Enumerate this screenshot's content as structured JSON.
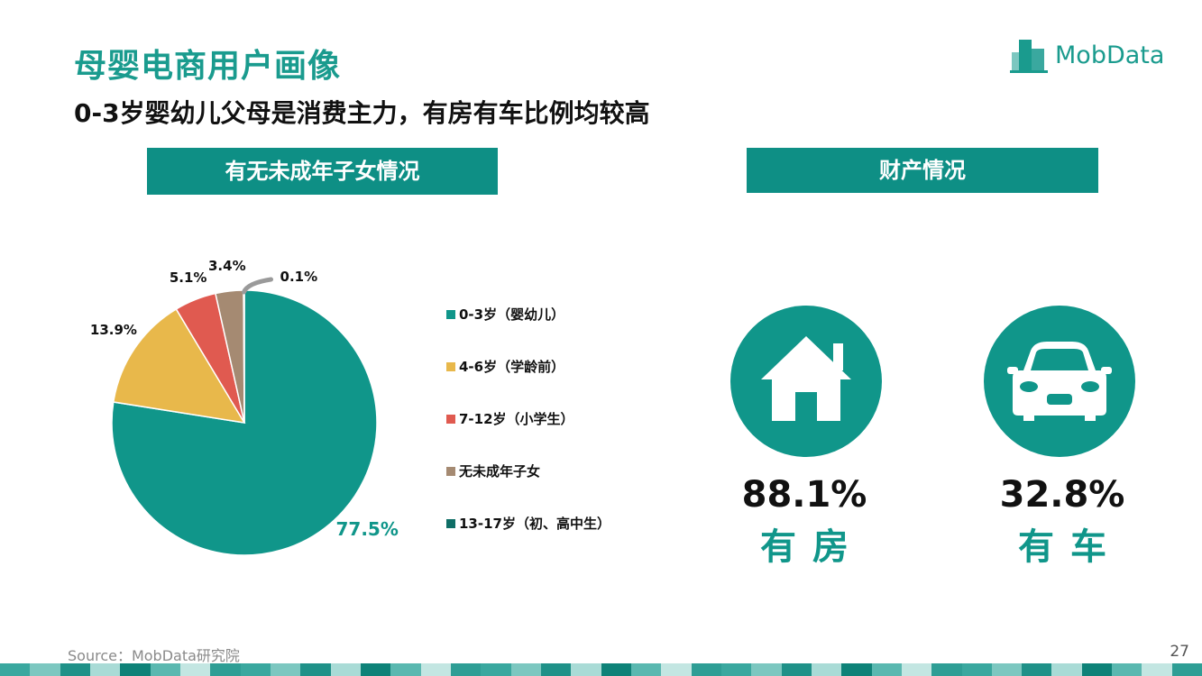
{
  "header": {
    "title": "母婴电商用户画像",
    "subtitle": "0-3岁婴幼儿父母是消费主力，有房有车比例均较高",
    "logo_text": "MobData"
  },
  "sections": {
    "left_title": "有无未成年子女情况",
    "right_title": "财产情况"
  },
  "chart_data": {
    "type": "pie",
    "categories": [
      "0-3岁（婴幼儿）",
      "4-6岁（学龄前）",
      "7-12岁（小学生）",
      "无未成年子女",
      "13-17岁（初、高中生）"
    ],
    "values": [
      77.5,
      13.9,
      5.1,
      3.4,
      0.1
    ],
    "value_labels": [
      "77.5%",
      "13.9%",
      "5.1%",
      "3.4%",
      "0.1%"
    ],
    "colors": [
      "#10968a",
      "#e8b84b",
      "#e05a50",
      "#a58a72",
      "#0f6e66"
    ],
    "legend": "right"
  },
  "assets": {
    "items": [
      {
        "value": "88.1%",
        "label": "有房",
        "icon": "house-icon"
      },
      {
        "value": "32.8%",
        "label": "有车",
        "icon": "car-icon"
      }
    ]
  },
  "footer": {
    "source": "Source：MobData研究院",
    "page": "27"
  },
  "theme": {
    "accent": "#10968a",
    "footer_colors": [
      "#3aa89f",
      "#7cc7c0",
      "#1f9188",
      "#a9dbd6",
      "#0e8278",
      "#5ab8b0",
      "#c3e6e2",
      "#2e9e95"
    ]
  }
}
